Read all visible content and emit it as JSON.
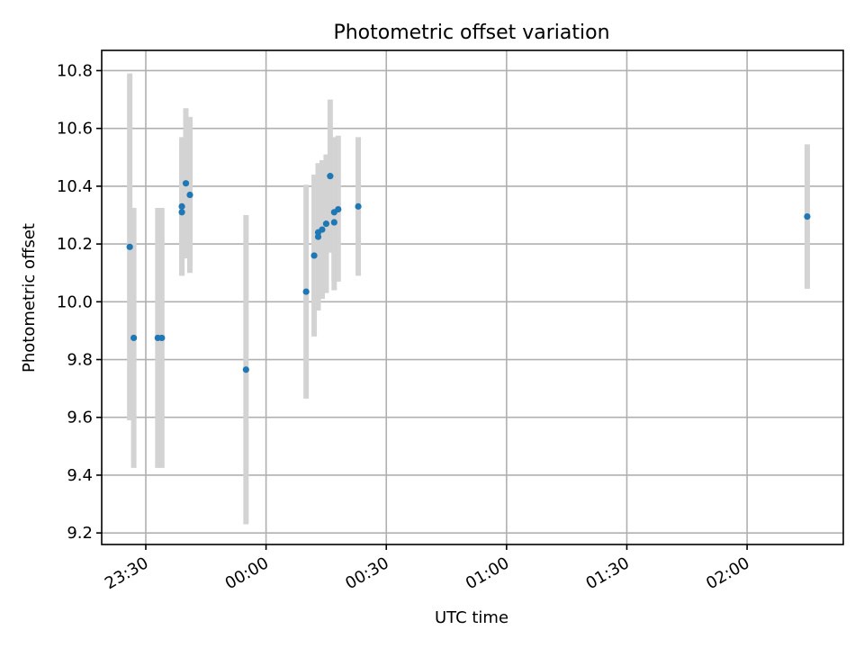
{
  "chart_data": {
    "type": "scatter",
    "title": "Photometric offset variation",
    "xlabel": "UTC time",
    "ylabel": "Photometric offset",
    "x_axis_type": "time",
    "x_tick_labels": [
      "23:30",
      "00:00",
      "00:30",
      "01:00",
      "01:30",
      "02:00"
    ],
    "y_tick_labels": [
      "9.2",
      "9.4",
      "9.6",
      "9.8",
      "10.0",
      "10.2",
      "10.4",
      "10.6",
      "10.8"
    ],
    "xlim": [
      "23:19",
      "02:24"
    ],
    "ylim": [
      9.16,
      10.87
    ],
    "grid": true,
    "marker_color": "#1f77b4",
    "errorbar_color": "#d3d3d3",
    "points": [
      {
        "time": "23:26",
        "y": 10.19,
        "yerr_low": 9.59,
        "yerr_high": 10.79
      },
      {
        "time": "23:27",
        "y": 9.875,
        "yerr_low": 9.425,
        "yerr_high": 10.325
      },
      {
        "time": "23:33",
        "y": 9.875,
        "yerr_low": 9.425,
        "yerr_high": 10.325
      },
      {
        "time": "23:34",
        "y": 9.875,
        "yerr_low": 9.425,
        "yerr_high": 10.325
      },
      {
        "time": "23:39",
        "y": 10.33,
        "yerr_low": 10.09,
        "yerr_high": 10.57
      },
      {
        "time": "23:39",
        "y": 10.31,
        "yerr_low": 10.09,
        "yerr_high": 10.53
      },
      {
        "time": "23:40",
        "y": 10.41,
        "yerr_low": 10.15,
        "yerr_high": 10.67
      },
      {
        "time": "23:41",
        "y": 10.37,
        "yerr_low": 10.1,
        "yerr_high": 10.64
      },
      {
        "time": "23:55",
        "y": 9.765,
        "yerr_low": 9.23,
        "yerr_high": 10.3
      },
      {
        "time": "00:10",
        "y": 10.035,
        "yerr_low": 9.665,
        "yerr_high": 10.405
      },
      {
        "time": "00:12",
        "y": 10.16,
        "yerr_low": 9.88,
        "yerr_high": 10.44
      },
      {
        "time": "00:13",
        "y": 10.24,
        "yerr_low": 10.0,
        "yerr_high": 10.47
      },
      {
        "time": "00:13",
        "y": 10.225,
        "yerr_low": 9.97,
        "yerr_high": 10.48
      },
      {
        "time": "00:14",
        "y": 10.25,
        "yerr_low": 10.01,
        "yerr_high": 10.49
      },
      {
        "time": "00:15",
        "y": 10.27,
        "yerr_low": 10.03,
        "yerr_high": 10.51
      },
      {
        "time": "00:16",
        "y": 10.435,
        "yerr_low": 10.17,
        "yerr_high": 10.7
      },
      {
        "time": "00:17",
        "y": 10.275,
        "yerr_low": 10.04,
        "yerr_high": 10.52
      },
      {
        "time": "00:17",
        "y": 10.31,
        "yerr_low": 10.07,
        "yerr_high": 10.57
      },
      {
        "time": "00:18",
        "y": 10.32,
        "yerr_low": 10.07,
        "yerr_high": 10.575
      },
      {
        "time": "00:23",
        "y": 10.33,
        "yerr_low": 10.09,
        "yerr_high": 10.57
      },
      {
        "time": "02:15",
        "y": 10.295,
        "yerr_low": 10.045,
        "yerr_high": 10.545
      }
    ]
  }
}
